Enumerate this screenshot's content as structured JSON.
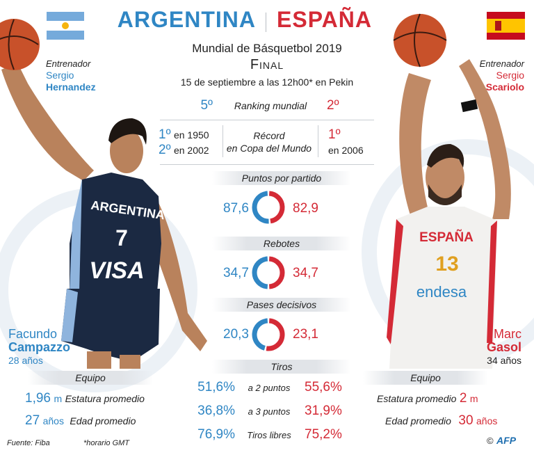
{
  "header": {
    "team_left": "ARGENTINA",
    "team_right": "ESPAÑA",
    "event": "Mundial de Básquetbol 2019",
    "stage": "Final",
    "date": "15 de septiembre a las 12h00* en Pekin"
  },
  "coaches": {
    "label": "Entrenador",
    "left_first": "Sergio",
    "left_last": "Hernandez",
    "right_first": "Sergio",
    "right_last": "Scariolo"
  },
  "ranking": {
    "label": "Ranking mundial",
    "left": "5º",
    "right": "2º"
  },
  "record": {
    "label_line1": "Récord",
    "label_line2": "en Copa del Mundo",
    "left": [
      {
        "place": "1º",
        "year": "en 1950"
      },
      {
        "place": "2º",
        "year": "en 2002"
      }
    ],
    "right": [
      {
        "place": "1º",
        "year": "en 2006"
      }
    ]
  },
  "stats": [
    {
      "label": "Puntos por partido",
      "left": "87,6",
      "right": "82,9",
      "left_value": 87.6,
      "right_value": 82.9
    },
    {
      "label": "Rebotes",
      "left": "34,7",
      "right": "34,7",
      "left_value": 34.7,
      "right_value": 34.7
    },
    {
      "label": "Pases decisivos",
      "left": "20,3",
      "right": "23,1",
      "left_value": 20.3,
      "right_value": 23.1
    }
  ],
  "shots": {
    "label": "Tiros",
    "rows": [
      {
        "label": "a 2 puntos",
        "left": "51,6%",
        "right": "55,6%"
      },
      {
        "label": "a 3 puntos",
        "left": "36,8%",
        "right": "31,9%"
      },
      {
        "label": "Tiros libres",
        "left": "76,9%",
        "right": "75,2%"
      }
    ]
  },
  "players": {
    "left_first": "Facundo",
    "left_last": "Campazzo",
    "left_age": "28 años",
    "left_jersey_team": "ARGENTINA",
    "left_jersey_number": "7",
    "left_jersey_sponsor": "VISA",
    "right_first": "Marc",
    "right_last": "Gasol",
    "right_age": "34 años",
    "right_jersey_team": "ESPAÑA",
    "right_jersey_number": "13",
    "right_jersey_sponsor": "endesa"
  },
  "team_stats": {
    "title": "Equipo",
    "height_label": "Estatura promedio",
    "age_label": "Edad promedio",
    "left_height": "1,96",
    "left_height_unit": "m",
    "left_age": "27",
    "left_age_unit": "años",
    "right_height": "2",
    "right_height_unit": "m",
    "right_age": "30",
    "right_age_unit": "años"
  },
  "footer": {
    "source": "Fuente: Fiba",
    "note": "*horario GMT",
    "credit": "AFP",
    "copyright": "©"
  },
  "colors": {
    "argentina": "#2f86c4",
    "espana": "#d42a36",
    "band": "#e1e4e8"
  }
}
